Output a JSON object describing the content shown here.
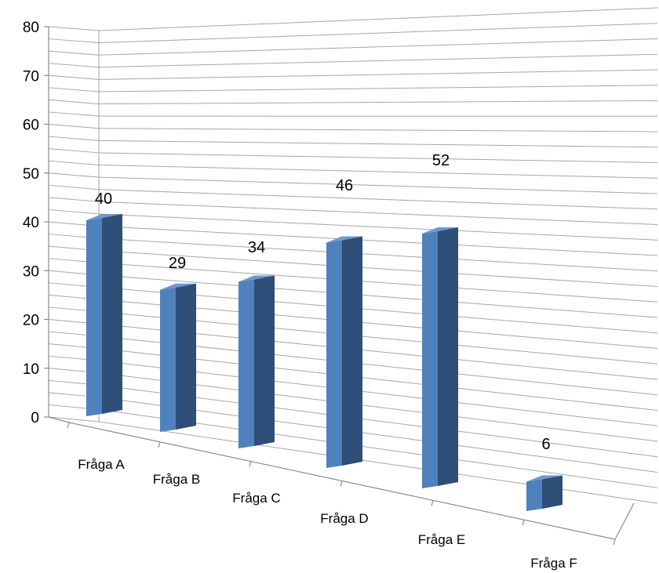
{
  "chart_data": {
    "type": "bar",
    "title": "",
    "xlabel": "",
    "ylabel": "",
    "categories": [
      "Fråga A",
      "Fråga B",
      "Fråga C",
      "Fråga D",
      "Fråga E",
      "Fråga F"
    ],
    "values": [
      40,
      29,
      34,
      46,
      52,
      6
    ],
    "ylim": [
      0,
      80
    ],
    "y_ticks": [
      0,
      10,
      20,
      30,
      40,
      50,
      60,
      70,
      80
    ],
    "grid": true,
    "legend": "none",
    "perspective_3d": true,
    "colors": {
      "bar_front": "#4F81BD",
      "bar_side": "#2F4E78",
      "bar_top": "#6D97CF",
      "grid": "#A6A6A6",
      "axis": "#8C8C8C"
    }
  }
}
